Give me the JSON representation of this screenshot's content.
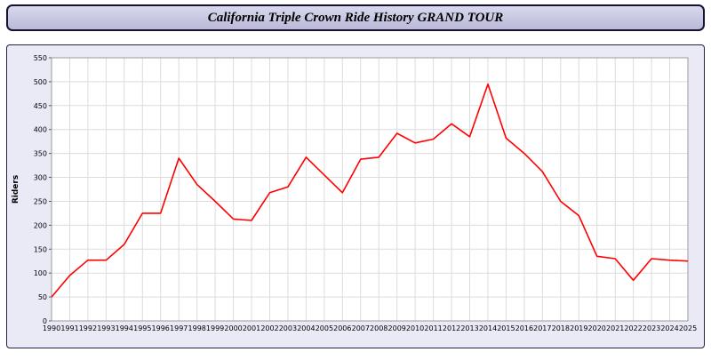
{
  "header": {
    "title": "California Triple Crown Ride History GRAND TOUR"
  },
  "colors": {
    "line": "#ff0000",
    "grid": "#dcdcdc",
    "plot_bg": "#ffffff",
    "panel_bg": "#eaeaf6",
    "border": "#22224a"
  },
  "chart_data": {
    "type": "line",
    "title": "California Triple Crown Ride History GRAND TOUR",
    "xlabel": "",
    "ylabel": "Riders",
    "ylim": [
      0,
      550
    ],
    "ytick_step": 50,
    "grid": true,
    "legend": "none",
    "x": [
      1990,
      1991,
      1992,
      1993,
      1994,
      1995,
      1996,
      1997,
      1998,
      1999,
      2000,
      2001,
      2002,
      2003,
      2004,
      2005,
      2006,
      2007,
      2008,
      2009,
      2010,
      2011,
      2012,
      2013,
      2014,
      2015,
      2016,
      2017,
      2018,
      2019,
      2020,
      2021,
      2022,
      2023,
      2024,
      2025
    ],
    "series": [
      {
        "name": "Riders",
        "color": "#ff0000",
        "values": [
          50,
          95,
          127,
          127,
          160,
          225,
          225,
          340,
          285,
          250,
          213,
          210,
          268,
          280,
          342,
          305,
          268,
          338,
          342,
          392,
          372,
          380,
          412,
          385,
          495,
          382,
          350,
          312,
          250,
          220,
          135,
          130,
          85,
          130,
          127,
          125
        ]
      }
    ]
  }
}
